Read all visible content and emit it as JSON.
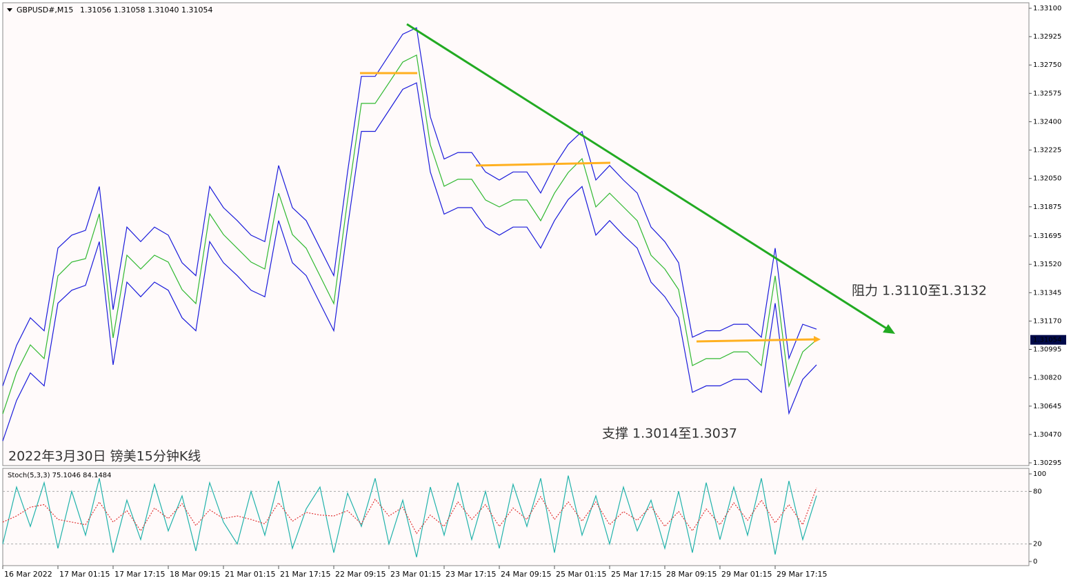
{
  "chart_data": [
    {
      "type": "line",
      "title": "GBPUSD#,M15",
      "subtitle": "1.31056 1.31058 1.31040 1.31054",
      "annotations": [
        "阻力 1.3110至1.3132",
        "支撑 1.3014至1.3037",
        "2022年3月30日 镑美15分钟K线"
      ],
      "x": [
        0,
        8,
        16,
        24,
        32,
        40,
        48,
        56,
        64,
        72,
        80,
        88,
        96,
        104,
        112,
        120,
        128,
        136,
        144,
        152,
        160,
        168,
        176,
        184,
        192,
        200,
        208,
        216,
        224,
        232,
        240,
        248,
        256,
        264,
        272,
        280,
        288,
        296,
        304,
        312,
        320,
        328,
        336,
        344,
        352,
        360,
        368,
        376,
        384,
        392,
        400,
        408,
        416,
        424,
        432,
        440,
        448,
        456,
        464,
        472
      ],
      "xlim": [
        0,
        595.2
      ],
      "ylim": [
        1.30278,
        1.33134
      ],
      "yticks": [
        {
          "value": 1.331,
          "label": "1.33100"
        },
        1.32925,
        {
          "value": 1.3275,
          "label": "1.32750"
        },
        1.32575,
        {
          "value": 1.324,
          "label": "1.32400"
        },
        1.32225,
        {
          "value": 1.3205,
          "label": "1.32050"
        },
        1.31875,
        1.31695,
        {
          "value": 1.3152,
          "label": "1.31520"
        },
        1.31345,
        {
          "value": 1.3117,
          "label": "1.31170"
        },
        1.30995,
        {
          "value": 1.3082,
          "label": "1.30820"
        },
        1.30645,
        {
          "value": 1.3047,
          "label": "1.30470"
        },
        1.30295
      ],
      "last_price": 1.31054,
      "grid": false,
      "series": [
        {
          "name": "Upper",
          "color": "#1a1adb",
          "values": [
            1.3077,
            1.3102,
            1.3119,
            1.3111,
            1.3162,
            1.317,
            1.3173,
            1.32,
            1.3124,
            1.3175,
            1.3166,
            1.3175,
            1.317,
            1.3153,
            1.3145,
            1.32,
            1.3187,
            1.3179,
            1.317,
            1.3166,
            1.3213,
            1.3187,
            1.3179,
            1.3162,
            1.3145,
            1.3209,
            1.3268,
            1.3268,
            1.3281,
            1.3294,
            1.3298,
            1.3243,
            1.3217,
            1.3221,
            1.3221,
            1.3209,
            1.3204,
            1.3209,
            1.3209,
            1.3196,
            1.3213,
            1.3226,
            1.3234,
            1.3204,
            1.3213,
            1.3204,
            1.3196,
            1.3175,
            1.3166,
            1.3153,
            1.3107,
            1.3111,
            1.3111,
            1.3115,
            1.3115,
            1.3107,
            1.3162,
            1.3094,
            1.3115,
            1.3112
          ]
        },
        {
          "name": "Lower",
          "color": "#1a1adb",
          "values": [
            1.3043,
            1.3068,
            1.3085,
            1.3077,
            1.3128,
            1.3136,
            1.3139,
            1.3166,
            1.309,
            1.3141,
            1.3132,
            1.3141,
            1.3136,
            1.3119,
            1.3111,
            1.3166,
            1.3153,
            1.3145,
            1.3136,
            1.3132,
            1.3179,
            1.3153,
            1.3145,
            1.3128,
            1.3111,
            1.3175,
            1.3234,
            1.3234,
            1.3247,
            1.326,
            1.3264,
            1.3209,
            1.3183,
            1.3187,
            1.3187,
            1.3175,
            1.317,
            1.3175,
            1.3175,
            1.3162,
            1.3179,
            1.3192,
            1.32,
            1.317,
            1.3179,
            1.317,
            1.3162,
            1.3141,
            1.3132,
            1.3119,
            1.3073,
            1.3077,
            1.3077,
            1.3081,
            1.3081,
            1.3073,
            1.3128,
            1.306,
            1.3081,
            1.309
          ]
        },
        {
          "name": "Close",
          "color": "#2fb82f",
          "values": [
            1.30597,
            1.30853,
            1.31023,
            1.30938,
            1.31449,
            1.31534,
            1.31555,
            1.31832,
            1.31066,
            1.31576,
            1.31491,
            1.31576,
            1.31534,
            1.31364,
            1.31278,
            1.31832,
            1.31704,
            1.31619,
            1.31534,
            1.31491,
            1.31959,
            1.31704,
            1.31619,
            1.31449,
            1.31278,
            1.31917,
            1.32513,
            1.32513,
            1.3264,
            1.32768,
            1.32811,
            1.32257,
            1.32002,
            1.32045,
            1.32045,
            1.31917,
            1.31874,
            1.31917,
            1.31917,
            1.31789,
            1.31959,
            1.32087,
            1.32172,
            1.31874,
            1.31959,
            1.31874,
            1.31789,
            1.31576,
            1.31491,
            1.31364,
            1.30895,
            1.30938,
            1.30938,
            1.3098,
            1.3098,
            1.30895,
            1.31449,
            1.30768,
            1.3098,
            1.31054
          ]
        }
      ]
    },
    {
      "type": "line",
      "title": "Stoch(5,3,3) 75.1046 84.1484",
      "x": [
        0,
        8,
        16,
        24,
        32,
        40,
        48,
        56,
        64,
        72,
        80,
        88,
        96,
        104,
        112,
        120,
        128,
        136,
        144,
        152,
        160,
        168,
        176,
        184,
        192,
        200,
        208,
        216,
        224,
        232,
        240,
        248,
        256,
        264,
        272,
        280,
        288,
        296,
        304,
        312,
        320,
        328,
        336,
        344,
        352,
        360,
        368,
        376,
        384,
        392,
        400,
        408,
        416,
        424,
        432,
        440,
        448,
        456,
        464,
        472
      ],
      "xlim": [
        0,
        595.2
      ],
      "xticks": [
        {
          "value": 0,
          "label": "16 Mar 2022"
        },
        {
          "value": 32,
          "label": "17 Mar 01:15"
        },
        {
          "value": 64,
          "label": "17 Mar 17:15"
        },
        {
          "value": 96,
          "label": "18 Mar 09:15"
        },
        {
          "value": 128,
          "label": "21 Mar 01:15"
        },
        {
          "value": 160,
          "label": "21 Mar 17:15"
        },
        {
          "value": 192,
          "label": "22 Mar 09:15"
        },
        {
          "value": 224,
          "label": "23 Mar 01:15"
        },
        {
          "value": 256,
          "label": "23 Mar 17:15"
        },
        {
          "value": 288,
          "label": "24 Mar 09:15"
        },
        {
          "value": 320,
          "label": "25 Mar 01:15"
        },
        {
          "value": 352,
          "label": "25 Mar 17:15"
        },
        {
          "value": 384,
          "label": "28 Mar 09:15"
        },
        {
          "value": 416,
          "label": "29 Mar 01:15"
        },
        {
          "value": 448,
          "label": "29 Mar 17:15"
        }
      ],
      "ylim": [
        -4.7,
        106.3
      ],
      "yticks": [
        0,
        20,
        80,
        100
      ],
      "levels": [
        80,
        20
      ],
      "series": [
        {
          "name": "Main",
          "color": "#20b2aa",
          "dashed": false,
          "values": [
            20,
            85,
            40,
            90,
            15,
            80,
            30,
            95,
            10,
            70,
            25,
            88,
            35,
            75,
            12,
            90,
            45,
            20,
            80,
            30,
            92,
            15,
            60,
            85,
            10,
            78,
            40,
            95,
            20,
            70,
            5,
            85,
            30,
            90,
            25,
            80,
            15,
            88,
            40,
            95,
            10,
            98,
            30,
            75,
            20,
            85,
            35,
            70,
            15,
            80,
            10,
            90,
            25,
            85,
            30,
            95,
            8,
            92,
            25,
            75.1046
          ]
        },
        {
          "name": "Signal",
          "color": "#e03030",
          "dashed": true,
          "values": [
            45,
            52,
            62,
            65,
            48,
            45,
            42,
            68,
            45,
            58,
            35,
            61,
            49,
            66,
            41,
            59,
            49,
            52,
            48,
            43,
            67,
            46,
            56,
            53,
            52,
            58,
            43,
            71,
            52,
            62,
            32,
            53,
            40,
            68,
            48,
            65,
            40,
            61,
            48,
            74,
            48,
            68,
            46,
            68,
            42,
            57,
            47,
            63,
            40,
            57,
            35,
            60,
            42,
            67,
            47,
            70,
            44,
            65,
            42,
            84.1484
          ]
        }
      ]
    }
  ]
}
